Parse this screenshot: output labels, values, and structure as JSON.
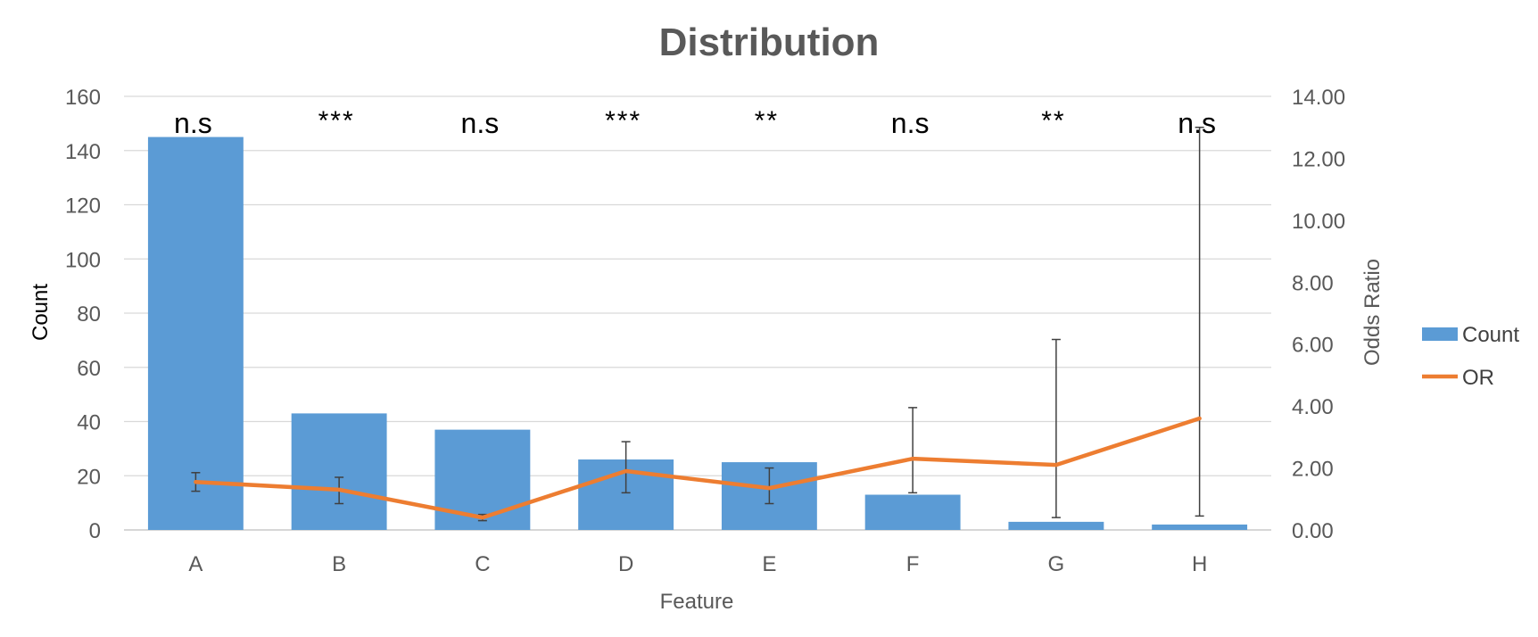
{
  "chart_data": {
    "type": "bar",
    "title": "Distribution",
    "xlabel": "Feature",
    "ylabel": "Count",
    "y2label": "Odds Ratio",
    "categories": [
      "A",
      "B",
      "C",
      "D",
      "E",
      "F",
      "G",
      "H"
    ],
    "ylim": [
      0,
      160
    ],
    "y_ticks": [
      "0",
      "20",
      "40",
      "60",
      "80",
      "100",
      "120",
      "140",
      "160"
    ],
    "y2lim": [
      0,
      14
    ],
    "y2_ticks": [
      "0.00",
      "2.00",
      "4.00",
      "6.00",
      "8.00",
      "10.00",
      "12.00",
      "14.00"
    ],
    "grid": true,
    "legend_position": "right",
    "series": [
      {
        "name": "Count",
        "type": "bar",
        "axis": "left",
        "color": "#5B9BD5",
        "values": [
          145,
          43,
          37,
          26,
          25,
          13,
          3,
          2
        ]
      },
      {
        "name": "OR",
        "type": "line",
        "axis": "right",
        "color": "#ED7D31",
        "values": [
          1.55,
          1.3,
          0.4,
          1.9,
          1.35,
          2.3,
          2.1,
          3.6
        ],
        "error_low": [
          1.25,
          0.85,
          0.3,
          1.2,
          0.85,
          1.2,
          0.4,
          0.45
        ],
        "error_high": [
          1.85,
          1.7,
          0.5,
          2.85,
          2.0,
          3.95,
          6.15,
          13.0
        ]
      }
    ],
    "annotations": [
      "n.s",
      "***",
      "n.s",
      "***",
      "**",
      "n.s",
      "**",
      "n.s"
    ]
  }
}
